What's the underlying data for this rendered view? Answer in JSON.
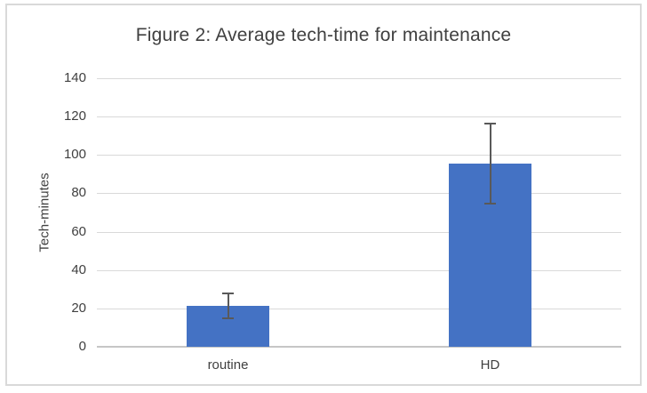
{
  "chart_data": {
    "type": "bar",
    "title": "Figure 2: Average tech-time for maintenance",
    "xlabel": "",
    "ylabel": "Tech-minutes",
    "categories": [
      "routine",
      "HD"
    ],
    "values": [
      21.5,
      95.5
    ],
    "error_bars": [
      6.5,
      21
    ],
    "ylim": [
      0,
      140
    ],
    "ytick_step": 20,
    "grid": true,
    "legend": "none",
    "colors": {
      "bar_fill": "#4472C4",
      "error_bar": "#595959",
      "gridline": "#D9D9D9",
      "axis_line": "#C6C6C6",
      "text": "#404040",
      "frame_border": "#D9D9D9",
      "background": "#FFFFFF"
    }
  }
}
